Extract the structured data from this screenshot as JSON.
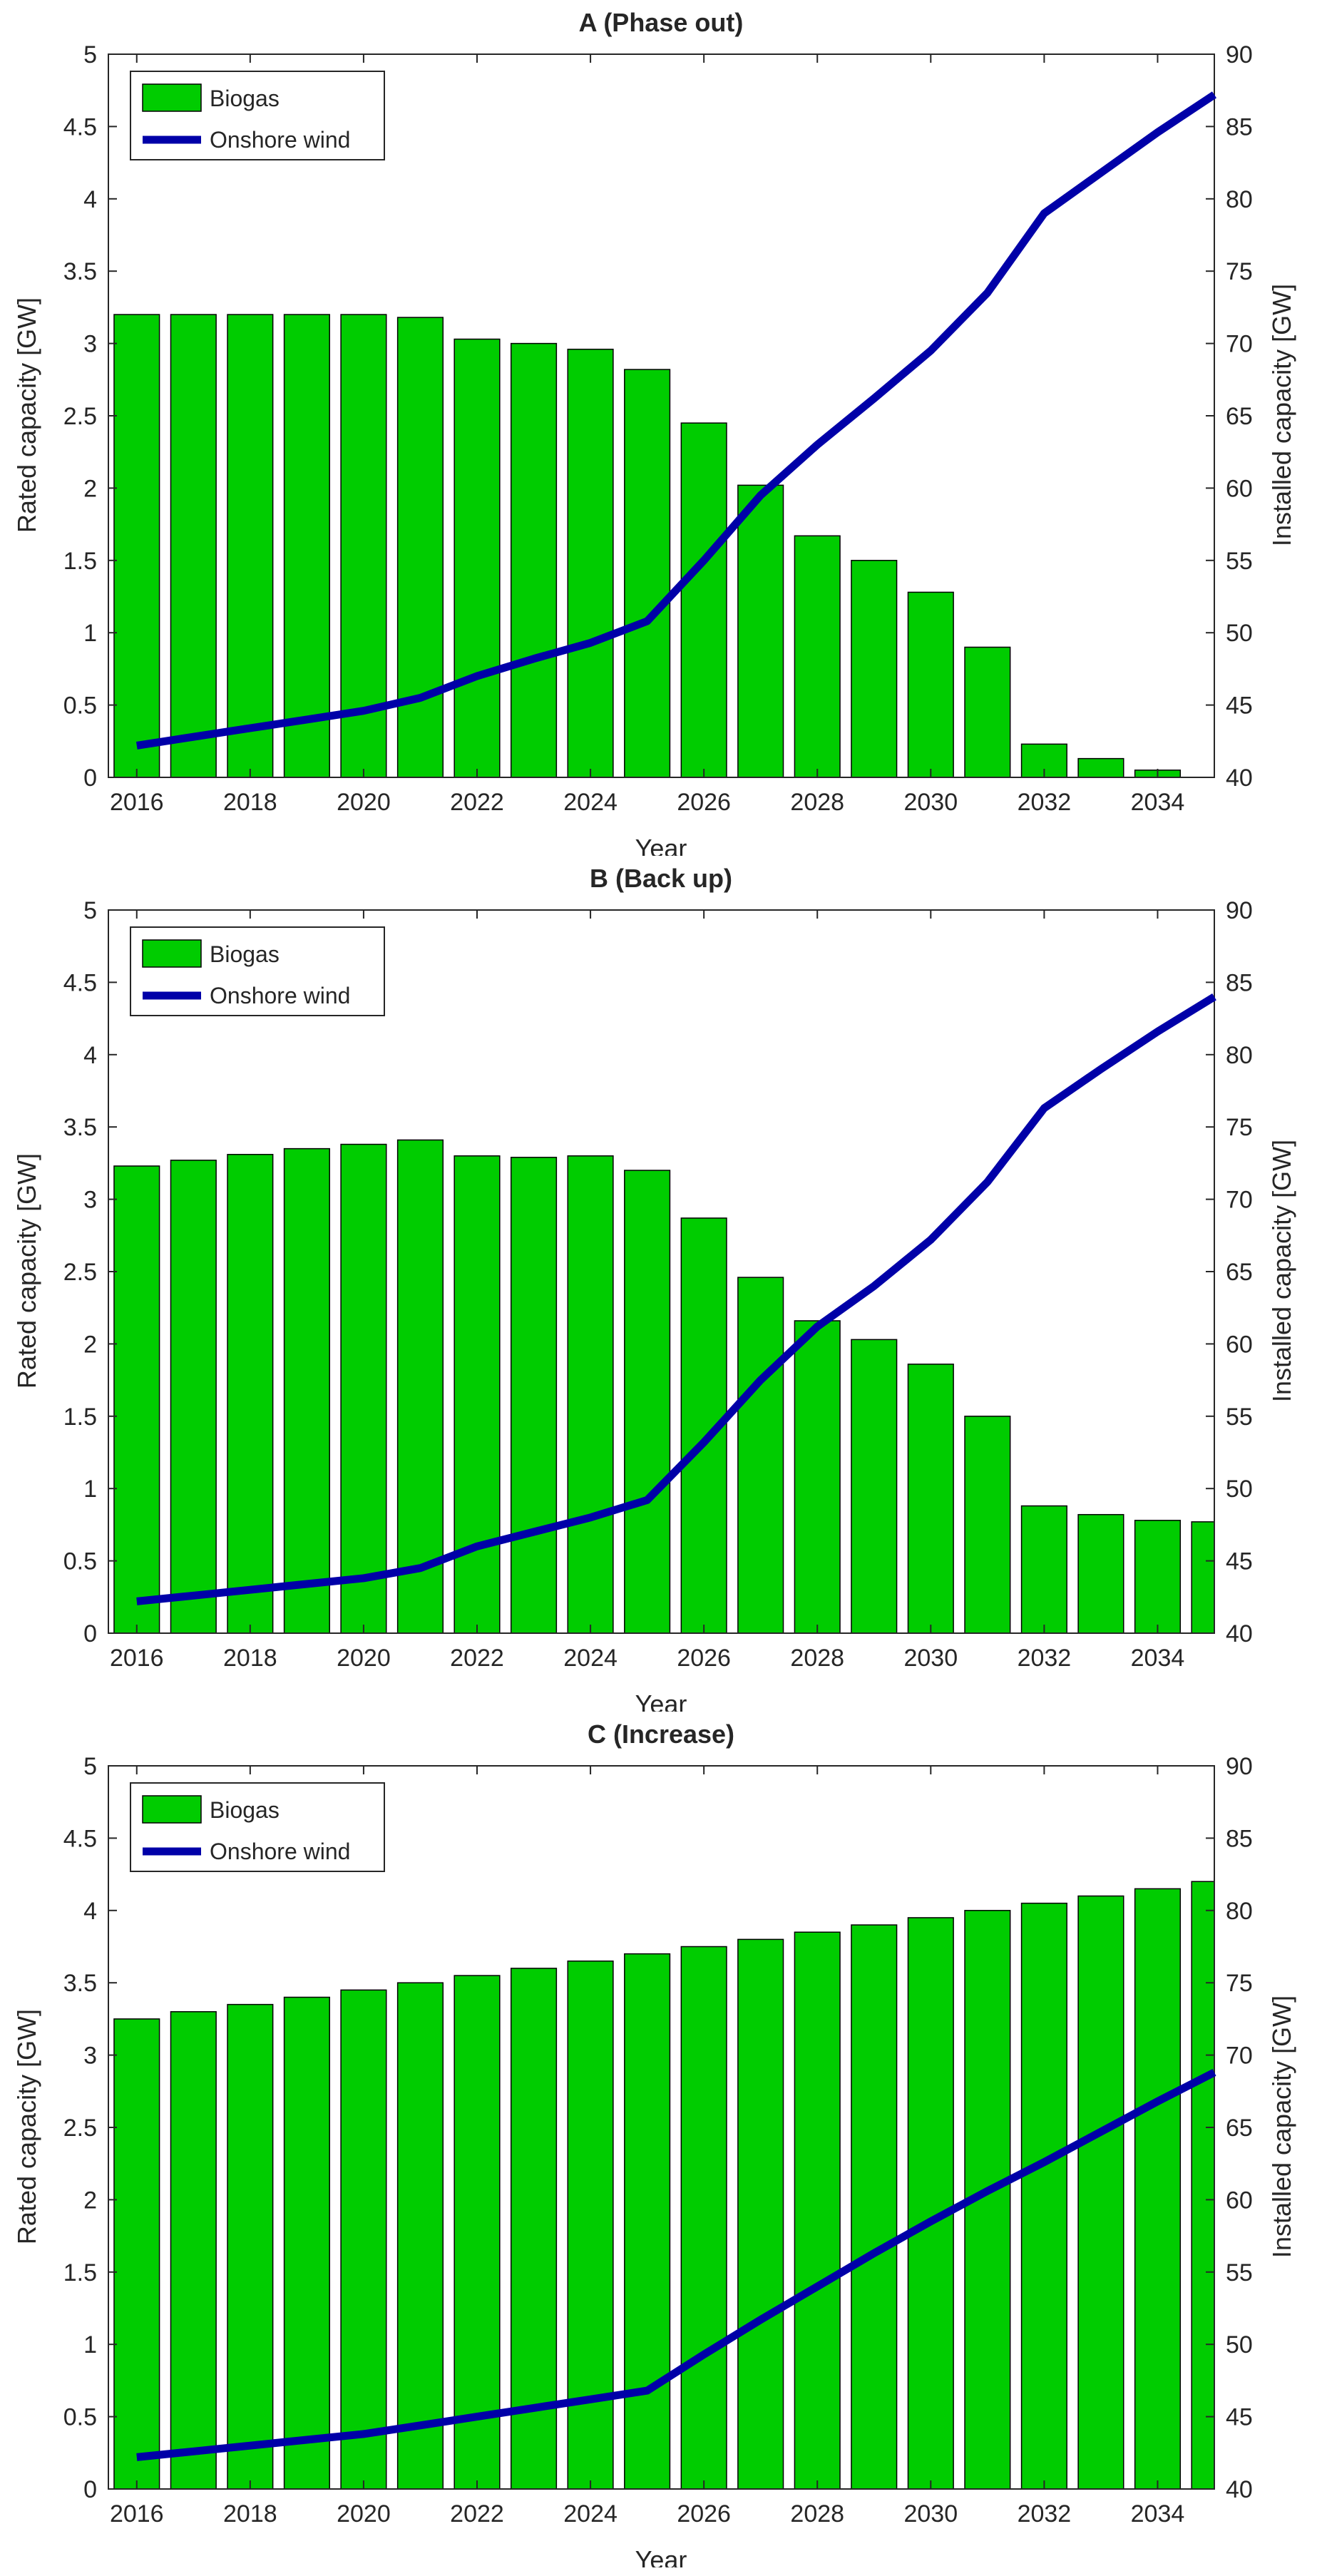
{
  "colors": {
    "bar": "#00cc00",
    "bar_edge": "#000000",
    "line": "#0000a8",
    "axis": "#262626",
    "legend_edge": "#262626"
  },
  "chart_data": [
    {
      "type": "bar+line",
      "title": "A (Phase out)",
      "xlabel": "Year",
      "ylabel_left": "Rated capacity [GW]",
      "ylabel_right": "Installed capacity [GW]",
      "x": [
        2016,
        2017,
        2018,
        2019,
        2020,
        2021,
        2022,
        2023,
        2024,
        2025,
        2026,
        2027,
        2028,
        2029,
        2030,
        2031,
        2032,
        2033,
        2034,
        2035
      ],
      "x_ticks": [
        "2016",
        "2018",
        "2020",
        "2022",
        "2024",
        "2026",
        "2028",
        "2030",
        "2032",
        "2034"
      ],
      "ylim_left": [
        0,
        5
      ],
      "y_ticks_left": [
        "0",
        "0.5",
        "1",
        "1.5",
        "2",
        "2.5",
        "3",
        "3.5",
        "4",
        "4.5",
        "5"
      ],
      "ylim_right": [
        40,
        90
      ],
      "y_ticks_right": [
        "40",
        "45",
        "50",
        "55",
        "60",
        "65",
        "70",
        "75",
        "80",
        "85",
        "90"
      ],
      "legend": {
        "position": "top-left",
        "entries": [
          "Biogas",
          "Onshore wind"
        ]
      },
      "series": [
        {
          "name": "Biogas",
          "type": "bar",
          "axis": "left",
          "values": [
            3.2,
            3.2,
            3.2,
            3.2,
            3.2,
            3.18,
            3.03,
            3.0,
            2.96,
            2.82,
            2.45,
            2.02,
            1.67,
            1.5,
            1.28,
            0.9,
            0.23,
            0.13,
            0.05,
            0.0
          ]
        },
        {
          "name": "Onshore wind",
          "type": "line",
          "axis": "right",
          "values": [
            42.2,
            42.8,
            43.4,
            44.0,
            44.6,
            45.5,
            47.0,
            48.2,
            49.3,
            50.8,
            55.0,
            59.5,
            63.0,
            66.2,
            69.5,
            73.5,
            79.0,
            81.8,
            84.6,
            87.2
          ]
        }
      ]
    },
    {
      "type": "bar+line",
      "title": "B (Back up)",
      "xlabel": "Year",
      "ylabel_left": "Rated capacity [GW]",
      "ylabel_right": "Installed capacity [GW]",
      "x": [
        2016,
        2017,
        2018,
        2019,
        2020,
        2021,
        2022,
        2023,
        2024,
        2025,
        2026,
        2027,
        2028,
        2029,
        2030,
        2031,
        2032,
        2033,
        2034,
        2035
      ],
      "x_ticks": [
        "2016",
        "2018",
        "2020",
        "2022",
        "2024",
        "2026",
        "2028",
        "2030",
        "2032",
        "2034"
      ],
      "ylim_left": [
        0,
        5
      ],
      "y_ticks_left": [
        "0",
        "0.5",
        "1",
        "1.5",
        "2",
        "2.5",
        "3",
        "3.5",
        "4",
        "4.5",
        "5"
      ],
      "ylim_right": [
        40,
        90
      ],
      "y_ticks_right": [
        "40",
        "45",
        "50",
        "55",
        "60",
        "65",
        "70",
        "75",
        "80",
        "85",
        "90"
      ],
      "legend": {
        "position": "top-left",
        "entries": [
          "Biogas",
          "Onshore wind"
        ]
      },
      "series": [
        {
          "name": "Biogas",
          "type": "bar",
          "axis": "left",
          "values": [
            3.23,
            3.27,
            3.31,
            3.35,
            3.38,
            3.41,
            3.3,
            3.29,
            3.3,
            3.2,
            2.87,
            2.46,
            2.16,
            2.03,
            1.86,
            1.5,
            0.88,
            0.82,
            0.78,
            0.77
          ]
        },
        {
          "name": "Onshore wind",
          "type": "line",
          "axis": "right",
          "values": [
            42.2,
            42.6,
            43.0,
            43.4,
            43.8,
            44.5,
            46.0,
            47.0,
            48.0,
            49.2,
            53.2,
            57.5,
            61.2,
            64.0,
            67.2,
            71.2,
            76.3,
            79.0,
            81.6,
            84.0
          ]
        }
      ]
    },
    {
      "type": "bar+line",
      "title": "C (Increase)",
      "xlabel": "Year",
      "ylabel_left": "Rated capacity [GW]",
      "ylabel_right": "Installed capacity [GW]",
      "x": [
        2016,
        2017,
        2018,
        2019,
        2020,
        2021,
        2022,
        2023,
        2024,
        2025,
        2026,
        2027,
        2028,
        2029,
        2030,
        2031,
        2032,
        2033,
        2034,
        2035
      ],
      "x_ticks": [
        "2016",
        "2018",
        "2020",
        "2022",
        "2024",
        "2026",
        "2028",
        "2030",
        "2032",
        "2034"
      ],
      "ylim_left": [
        0,
        5
      ],
      "y_ticks_left": [
        "0",
        "0.5",
        "1",
        "1.5",
        "2",
        "2.5",
        "3",
        "3.5",
        "4",
        "4.5",
        "5"
      ],
      "ylim_right": [
        40,
        90
      ],
      "y_ticks_right": [
        "40",
        "45",
        "50",
        "55",
        "60",
        "65",
        "70",
        "75",
        "80",
        "85",
        "90"
      ],
      "legend": {
        "position": "top-left",
        "entries": [
          "Biogas",
          "Onshore wind"
        ]
      },
      "series": [
        {
          "name": "Biogas",
          "type": "bar",
          "axis": "left",
          "values": [
            3.25,
            3.3,
            3.35,
            3.4,
            3.45,
            3.5,
            3.55,
            3.6,
            3.65,
            3.7,
            3.75,
            3.8,
            3.85,
            3.9,
            3.95,
            4.0,
            4.05,
            4.1,
            4.15,
            4.2
          ]
        },
        {
          "name": "Onshore wind",
          "type": "line",
          "axis": "right",
          "values": [
            42.2,
            42.6,
            43.0,
            43.4,
            43.8,
            44.4,
            45.0,
            45.6,
            46.2,
            46.8,
            49.3,
            51.7,
            54.0,
            56.3,
            58.5,
            60.6,
            62.6,
            64.7,
            66.8,
            68.8
          ]
        }
      ]
    }
  ]
}
